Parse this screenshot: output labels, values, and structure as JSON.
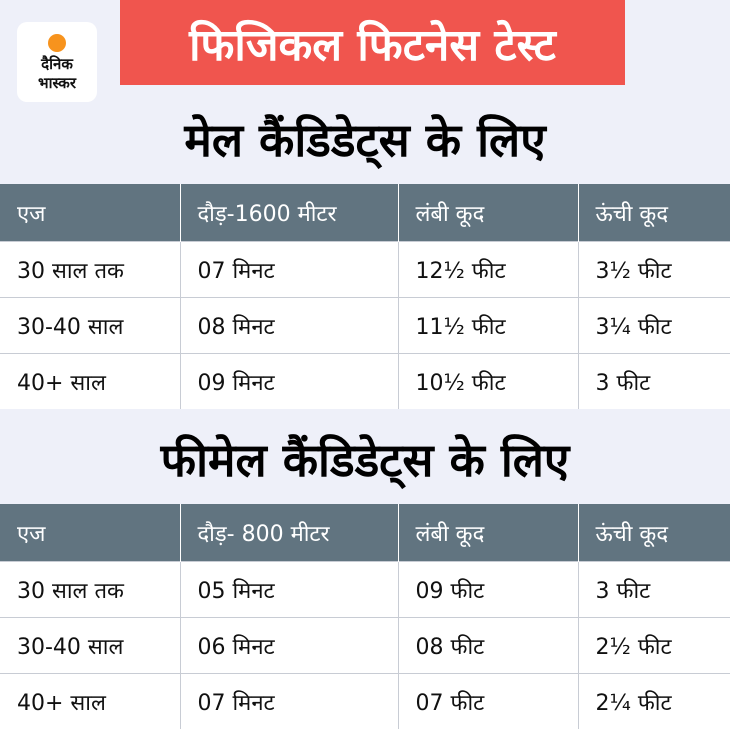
{
  "logo": {
    "line1": "दैनिक",
    "line2": "भास्कर"
  },
  "banner_title": "फिजिकल फिटनेस टेस्ट",
  "male": {
    "heading": "मेल कैंडिडेट्स के लिए",
    "headers": [
      "एज",
      "दौड़-1600 मीटर",
      "लंबी कूद",
      "ऊंची कूद"
    ],
    "rows": [
      [
        "30 साल तक",
        "07 मिनट",
        "12½ फीट",
        "3½ फीट"
      ],
      [
        "30-40 साल",
        "08 मिनट",
        "11½ फीट",
        "3¼ फीट"
      ],
      [
        "40+ साल",
        "09 मिनट",
        "10½ फीट",
        "3 फीट"
      ]
    ]
  },
  "female": {
    "heading": "फीमेल कैंडिडेट्स के लिए",
    "headers": [
      "एज",
      "दौड़- 800 मीटर",
      "लंबी कूद",
      "ऊंची कूद"
    ],
    "rows": [
      [
        "30 साल तक",
        "05 मिनट",
        "09 फीट",
        "3 फीट"
      ],
      [
        "30-40 साल",
        "06 मिनट",
        "08 फीट",
        "2½ फीट"
      ],
      [
        "40+ साल",
        "07 मिनट",
        "07 फीट",
        "2¼ फीट"
      ]
    ]
  },
  "colors": {
    "background": "#eef0f9",
    "banner": "#f0554e",
    "table_header": "#617480",
    "logo_sun": "#f7931d"
  }
}
